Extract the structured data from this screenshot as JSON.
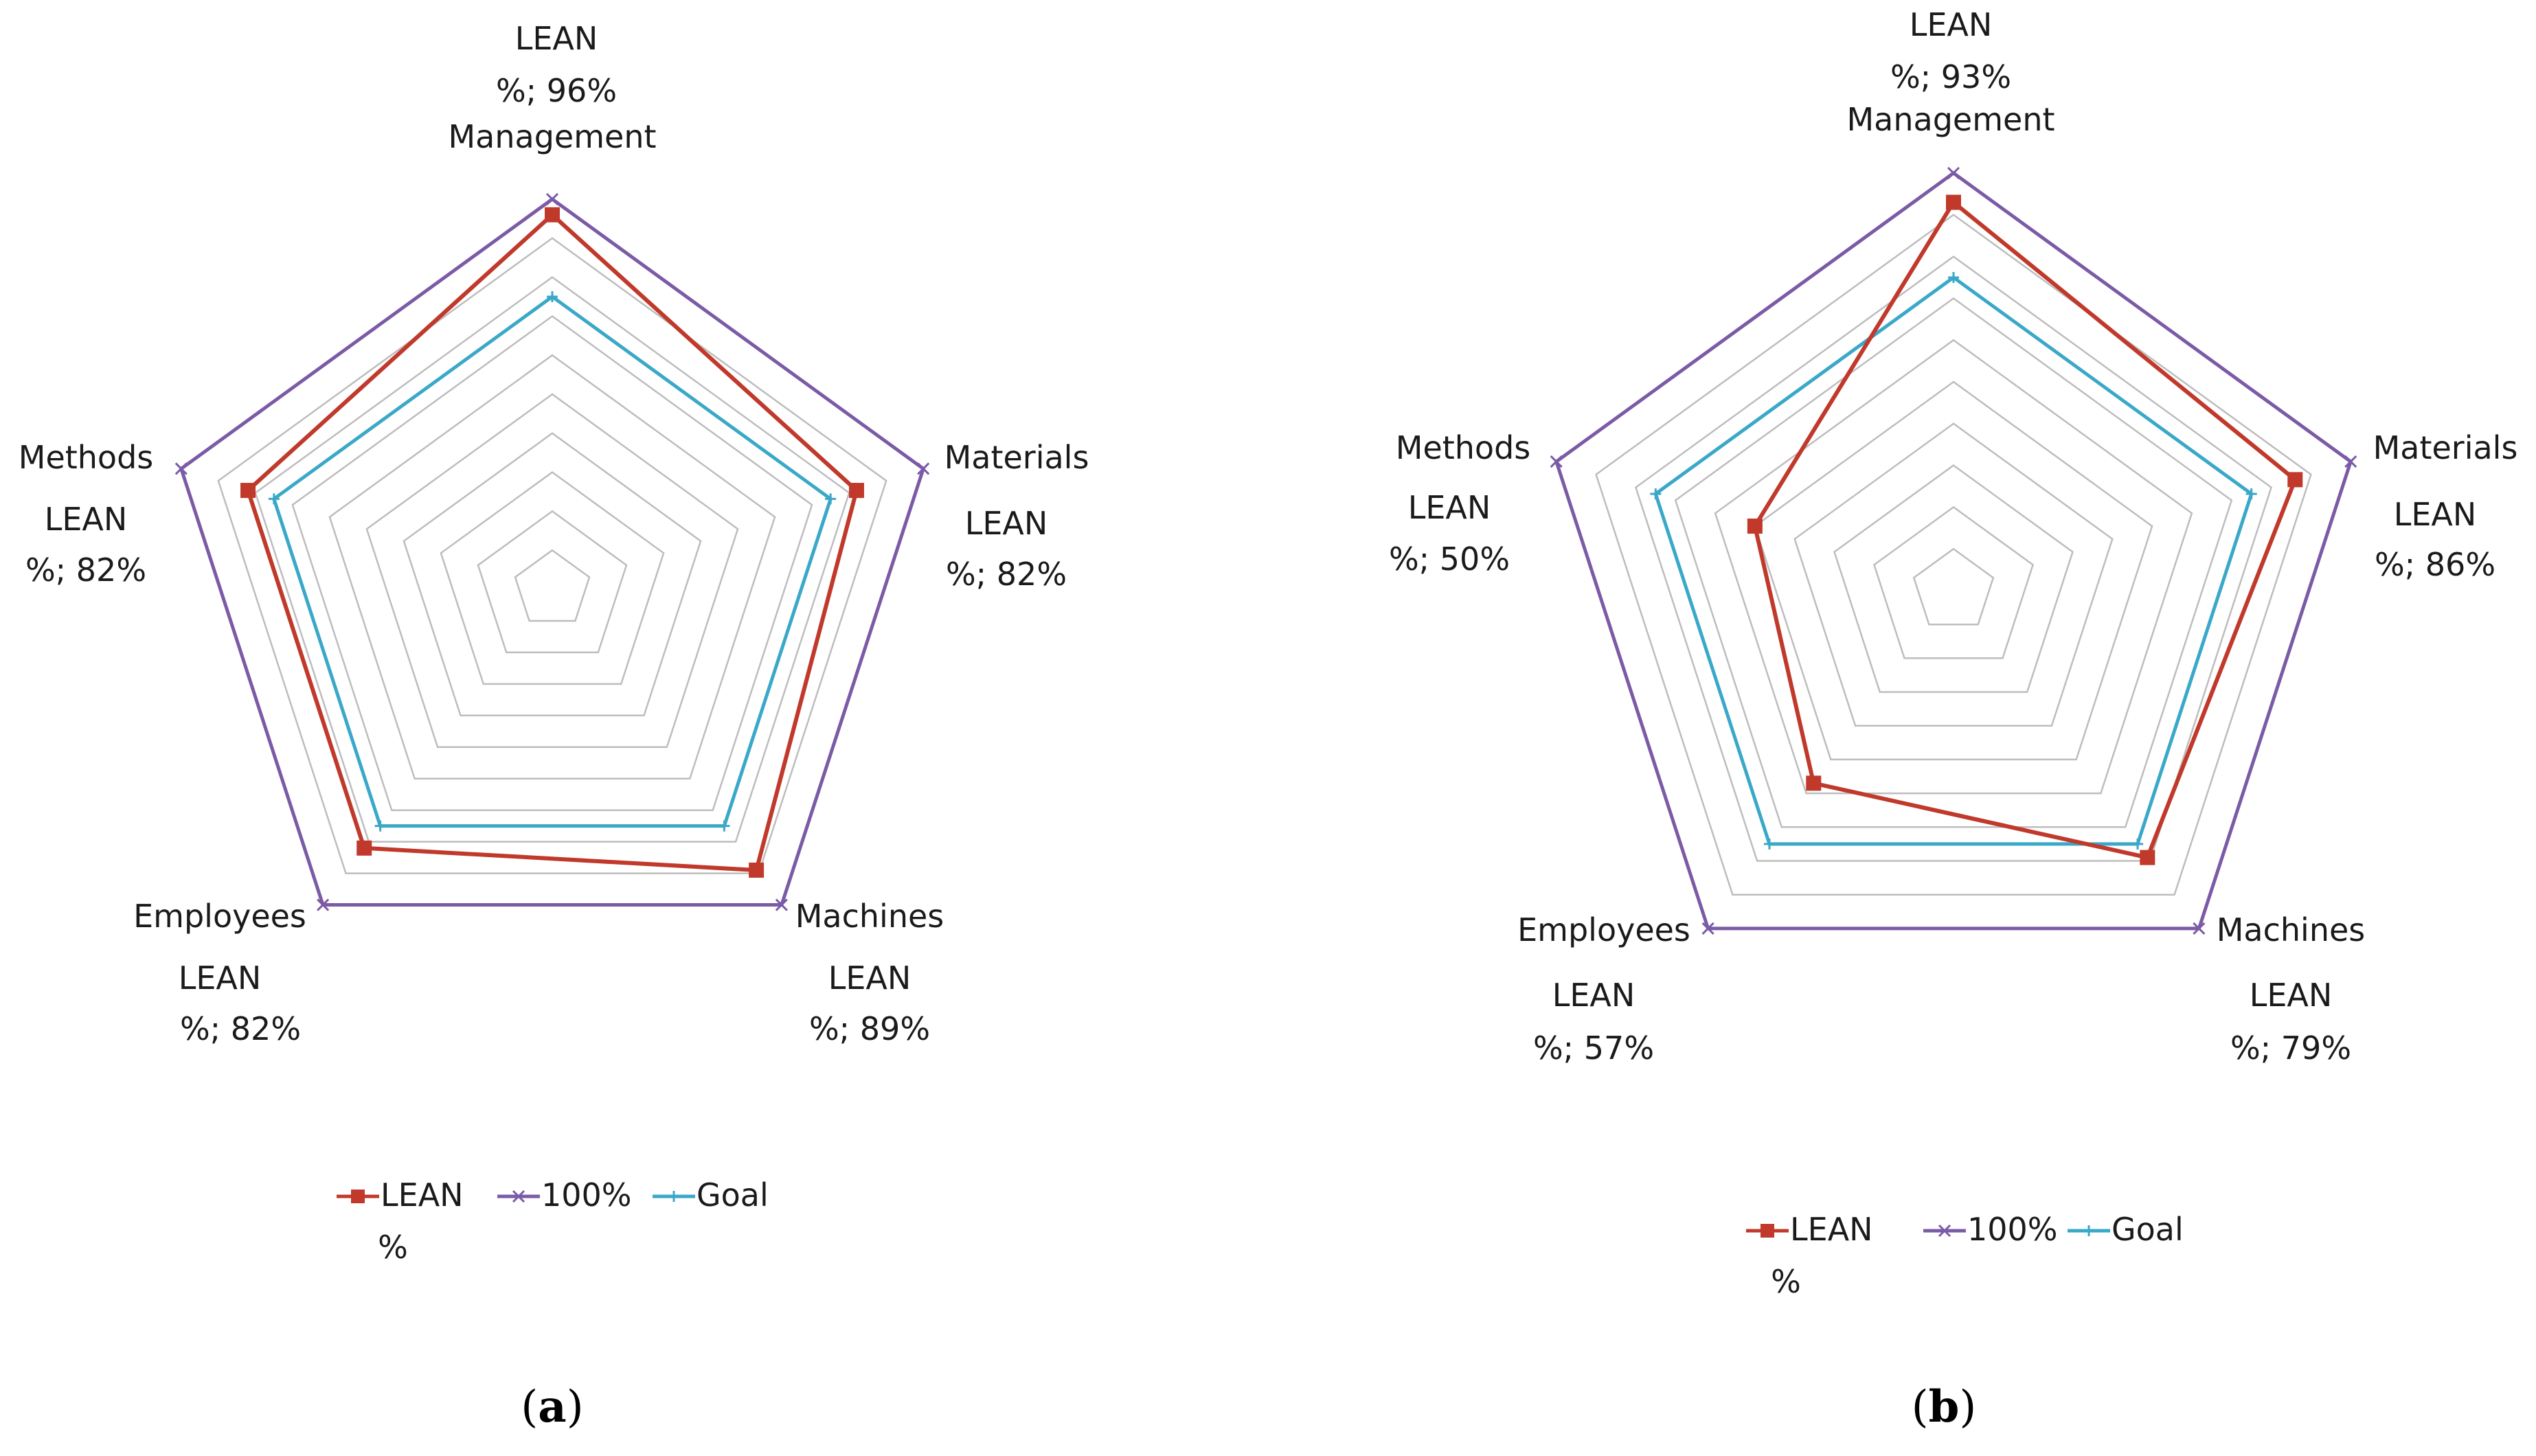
{
  "colors": {
    "lean": "#c0392b",
    "full": "#7b5aa6",
    "goal": "#3aa8c8",
    "grid": "#bdbdbd"
  },
  "chart_data": [
    {
      "type": "radar",
      "panel": "a",
      "caption": {
        "open": "(",
        "letter": "a",
        "close": ")"
      },
      "axes": [
        "Management",
        "Materials",
        "Machines",
        "Employees",
        "Methods"
      ],
      "point_labels": [
        {
          "l1": "LEAN",
          "l2": "%; 96%"
        },
        {
          "l1": "LEAN",
          "l2": "%; 82%"
        },
        {
          "l1": "LEAN",
          "l2": "%; 89%"
        },
        {
          "l1": "LEAN",
          "l2": "%; 82%"
        },
        {
          "l1": "LEAN",
          "l2": "%; 82%"
        }
      ],
      "rmax": 100,
      "grid_levels": 10,
      "series": [
        {
          "key": "lean",
          "name": "LEAN %",
          "legend_line1": "LEAN",
          "legend_line2": "%",
          "values": [
            96,
            82,
            89,
            82,
            82
          ]
        },
        {
          "key": "full",
          "name": "100%",
          "legend_line1": "100%",
          "legend_line2": "",
          "values": [
            100,
            100,
            100,
            100,
            100
          ]
        },
        {
          "key": "goal",
          "name": "Goal",
          "legend_line1": "Goal",
          "legend_line2": "",
          "values": [
            75,
            75,
            75,
            75,
            75
          ]
        }
      ]
    },
    {
      "type": "radar",
      "panel": "b",
      "caption": {
        "open": "(",
        "letter": "b",
        "close": ")"
      },
      "axes": [
        "Management",
        "Materials",
        "Machines",
        "Employees",
        "Methods"
      ],
      "point_labels": [
        {
          "l1": "LEAN",
          "l2": "%; 93%"
        },
        {
          "l1": "LEAN",
          "l2": "%; 86%"
        },
        {
          "l1": "LEAN",
          "l2": "%; 79%"
        },
        {
          "l1": "LEAN",
          "l2": "%; 57%"
        },
        {
          "l1": "LEAN",
          "l2": "%; 50%"
        }
      ],
      "rmax": 100,
      "grid_levels": 10,
      "series": [
        {
          "key": "lean",
          "name": "LEAN %",
          "legend_line1": "LEAN",
          "legend_line2": "%",
          "values": [
            93,
            86,
            79,
            57,
            50
          ]
        },
        {
          "key": "full",
          "name": "100%",
          "legend_line1": "100%",
          "legend_line2": "",
          "values": [
            100,
            100,
            100,
            100,
            100
          ]
        },
        {
          "key": "goal",
          "name": "Goal",
          "legend_line1": "Goal",
          "legend_line2": "",
          "values": [
            75,
            75,
            75,
            75,
            75
          ]
        }
      ]
    }
  ]
}
